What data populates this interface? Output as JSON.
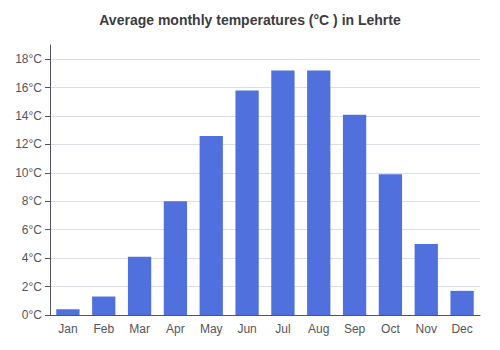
{
  "chart_data": {
    "type": "bar",
    "title": "Average monthly temperatures (°C ) in Lehrte",
    "categories": [
      "Jan",
      "Feb",
      "Mar",
      "Apr",
      "May",
      "Jun",
      "Jul",
      "Aug",
      "Sep",
      "Oct",
      "Nov",
      "Dec"
    ],
    "values": [
      0.4,
      1.3,
      4.1,
      8.0,
      12.6,
      15.8,
      17.2,
      17.2,
      14.1,
      9.9,
      5.0,
      1.7
    ],
    "ylim": [
      0,
      19
    ],
    "yticks": [
      {
        "value": 0,
        "label": "0°C"
      },
      {
        "value": 2,
        "label": "2°C"
      },
      {
        "value": 4,
        "label": "4°C"
      },
      {
        "value": 6,
        "label": "6°C"
      },
      {
        "value": 8,
        "label": "8°C"
      },
      {
        "value": 10,
        "label": "10°C"
      },
      {
        "value": 12,
        "label": "12°C"
      },
      {
        "value": 14,
        "label": "14°C"
      },
      {
        "value": 16,
        "label": "16°C"
      },
      {
        "value": 18,
        "label": "18°C"
      }
    ],
    "grid": true
  }
}
